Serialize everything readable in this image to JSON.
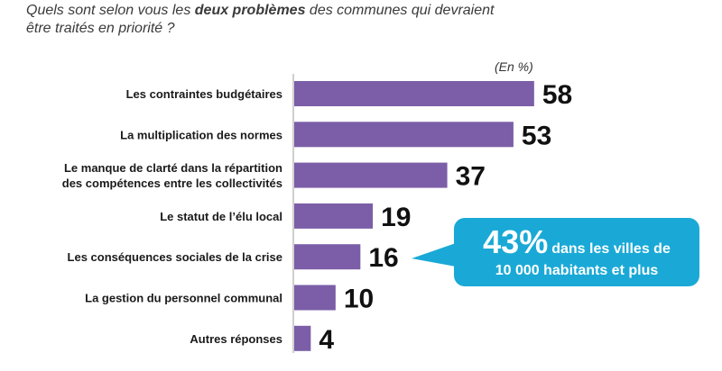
{
  "question": {
    "before": "Quels sont selon vous les ",
    "bold": "deux problèmes",
    "line1_after": " des communes qui devraient",
    "line2": "être traités en priorité ?"
  },
  "unit_label": "(En %)",
  "callout": {
    "percent": "43%",
    "text_line1": "dans les villes de",
    "text_line2": "10 000 habitants et plus",
    "color": "#1aa9d6"
  },
  "chart_data": {
    "type": "bar",
    "orientation": "horizontal",
    "categories": [
      [
        "Les contraintes budgétaires"
      ],
      [
        "La multiplication des normes"
      ],
      [
        "Le manque de clarté dans la répartition",
        "des compétences entre les collectivités"
      ],
      [
        "Le statut de l’élu local"
      ],
      [
        "Les conséquences sociales de la crise"
      ],
      [
        "La gestion du personnel communal"
      ],
      [
        "Autres réponses"
      ]
    ],
    "values": [
      58,
      53,
      37,
      19,
      16,
      10,
      4
    ],
    "xlim": [
      0,
      60
    ],
    "bar_color": "#7b5ea7",
    "unit": "%"
  }
}
